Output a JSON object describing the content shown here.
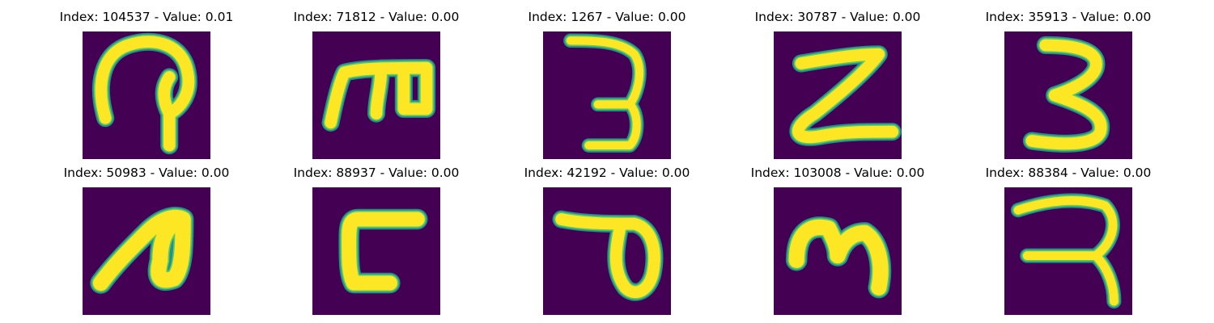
{
  "colors": {
    "background": "#440154",
    "stroke_core": "#fde725",
    "stroke_mid": "#5ec962",
    "stroke_edge": "#21918c"
  },
  "panels": [
    {
      "title": "Index: 104537 - Value: 0.01"
    },
    {
      "title": "Index: 71812 - Value: 0.00"
    },
    {
      "title": "Index: 1267 - Value: 0.00"
    },
    {
      "title": "Index: 30787 - Value: 0.00"
    },
    {
      "title": "Index: 35913 - Value: 0.00"
    },
    {
      "title": "Index: 50983 - Value: 0.00"
    },
    {
      "title": "Index: 88937 - Value: 0.00"
    },
    {
      "title": "Index: 42192 - Value: 0.00"
    },
    {
      "title": "Index: 103008 - Value: 0.00"
    },
    {
      "title": "Index: 88384 - Value: 0.00"
    }
  ]
}
